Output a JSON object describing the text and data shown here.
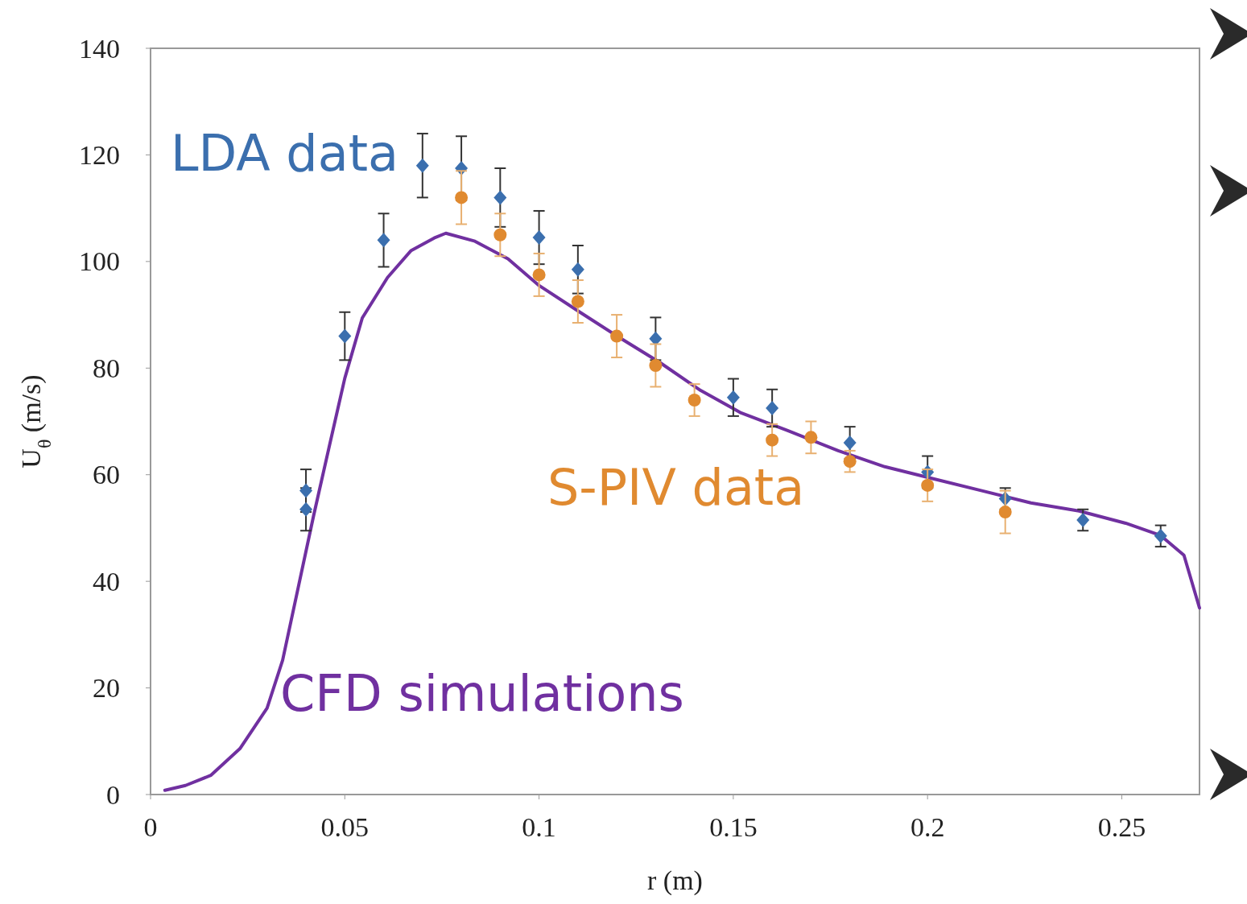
{
  "chart_data": {
    "type": "scatter",
    "xlabel": "r (m)",
    "ylabel": "U$_{θ}$ (m/s)",
    "xlim": [
      0,
      0.27
    ],
    "xticks": [
      0,
      0.05,
      {
        "value": 0.1,
        "label": "0.1"
      },
      0.15,
      {
        "value": 0.2,
        "label": "0.2"
      },
      0.25
    ],
    "ylim": [
      0,
      140
    ],
    "yticks": [
      0,
      20,
      40,
      60,
      80,
      100,
      120,
      140
    ],
    "grid": false,
    "legend": false,
    "series": [
      {
        "name": "LDA data",
        "marker": "diamond",
        "color": "#3b6fae",
        "x": [
          0.04,
          0.04,
          0.05,
          0.06,
          0.07,
          0.08,
          0.09,
          0.1,
          0.11,
          0.13,
          0.15,
          0.16,
          0.18,
          0.2,
          0.22,
          0.24,
          0.26
        ],
        "values": [
          57,
          53.5,
          86,
          104,
          118,
          117.5,
          112,
          104.5,
          98.5,
          85.5,
          74.5,
          72.5,
          66,
          60.5,
          55.5,
          51.5,
          48.5
        ],
        "errors": [
          4,
          4,
          4.5,
          5,
          6,
          6,
          5.5,
          5,
          4.5,
          4,
          3.5,
          3.5,
          3,
          3,
          2,
          2,
          2
        ]
      },
      {
        "name": "S-PIV data",
        "marker": "circle",
        "color": "#e08a30",
        "x": [
          0.08,
          0.09,
          0.1,
          0.11,
          0.12,
          0.13,
          0.14,
          0.16,
          0.17,
          0.18,
          0.2,
          0.22
        ],
        "values": [
          112,
          105,
          97.5,
          92.5,
          86,
          80.5,
          74,
          66.5,
          67,
          62.5,
          58,
          53
        ],
        "errors": [
          5,
          4,
          4,
          4,
          4,
          4,
          3,
          3,
          3,
          2,
          3,
          4
        ]
      },
      {
        "name": "CFD simulations",
        "type": "line",
        "marker": "none",
        "color": "#7030a0",
        "x": [
          0.0037,
          0.009,
          0.0155,
          0.023,
          0.03,
          0.034,
          0.038,
          0.042,
          0.046,
          0.05,
          0.0545,
          0.061,
          0.067,
          0.073,
          0.076,
          0.0835,
          0.092,
          0.1,
          0.1105,
          0.121,
          0.131,
          0.1416,
          0.152,
          0.164,
          0.177,
          0.189,
          0.2017,
          0.214,
          0.2266,
          0.239,
          0.251,
          0.26,
          0.266,
          0.27
        ],
        "values": [
          0.8,
          1.7,
          3.6,
          8.6,
          16.2,
          25.2,
          38.8,
          52.4,
          65.3,
          78.1,
          89.4,
          97,
          102,
          104.4,
          105.3,
          103.8,
          100.5,
          95.5,
          90.5,
          85.6,
          81.1,
          75.8,
          71.6,
          68.3,
          64.5,
          61.5,
          59.2,
          57,
          54.7,
          53.2,
          50.9,
          48.6,
          44.9,
          35
        ]
      }
    ]
  }
}
